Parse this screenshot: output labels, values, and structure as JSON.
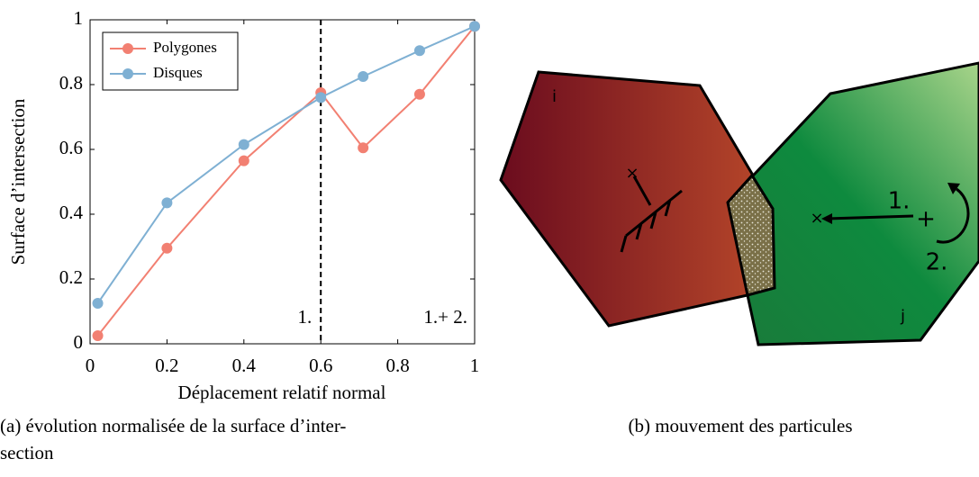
{
  "chart_data": {
    "type": "line",
    "xlabel": "Déplacement relatif normal",
    "ylabel": "Surface d’intersection",
    "series": [
      {
        "name": "Polygones",
        "color": "#f28072",
        "x": [
          0.02,
          0.2,
          0.4,
          0.6,
          0.71,
          0.857,
          1
        ],
        "values": [
          0.025,
          0.295,
          0.565,
          0.775,
          0.605,
          0.77,
          0.98
        ]
      },
      {
        "name": "Disques",
        "color": "#7fb0d3",
        "x": [
          0.02,
          0.2,
          0.4,
          0.6,
          0.71,
          0.857,
          1
        ],
        "values": [
          0.125,
          0.435,
          0.615,
          0.76,
          0.825,
          0.905,
          0.98
        ]
      }
    ],
    "xlim": [
      0,
      1
    ],
    "ylim": [
      0,
      1
    ],
    "xticks": [
      0,
      0.2,
      0.4,
      0.6,
      0.8,
      1
    ],
    "yticks": [
      0,
      0.2,
      0.4,
      0.6,
      0.8,
      1
    ],
    "vline": 0.6,
    "legend": "upper left",
    "annotations": [
      "1.",
      "1.+ 2."
    ]
  },
  "diagram": {
    "particle_i": "i",
    "particle_j": "j",
    "step1": "1.",
    "step2": "2.",
    "center": "+",
    "cross1": "×",
    "cross2": "×"
  },
  "captions": {
    "a": [
      "(a) évolution normalisée de la surface d’inter-",
      "section"
    ],
    "b": "(b) mouvement des particules"
  }
}
